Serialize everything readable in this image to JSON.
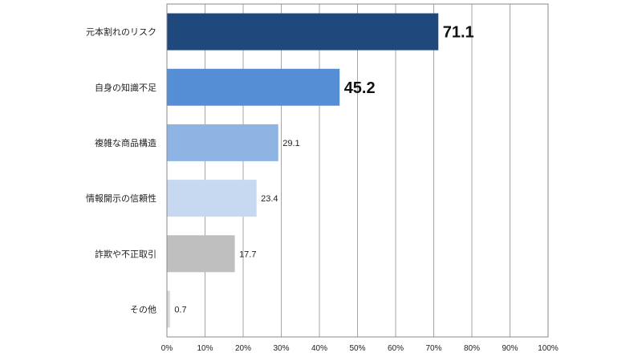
{
  "chart_data": {
    "type": "bar",
    "orientation": "horizontal",
    "categories": [
      "元本割れのリスク",
      "自身の知識不足",
      "複雑な商品構造",
      "情報開示の信頼性",
      "詐欺や不正取引",
      "その他"
    ],
    "values": [
      71.1,
      45.2,
      29.1,
      23.4,
      17.7,
      0.7
    ],
    "value_labels": [
      "71.1",
      "45.2",
      "29.1",
      "23.4",
      "17.7",
      "0.7"
    ],
    "highlighted_value_labels": [
      true,
      true,
      false,
      false,
      false,
      false
    ],
    "bar_colors": [
      "#1f497d",
      "#558ed5",
      "#8eb4e3",
      "#c6d9f1",
      "#bfbfbf",
      "#d9d9d9"
    ],
    "xlim": [
      0,
      100
    ],
    "xticks": [
      "0%",
      "10%",
      "20%",
      "30%",
      "40%",
      "50%",
      "60%",
      "70%",
      "80%",
      "90%",
      "100%"
    ],
    "grid": true,
    "gridline_color": "#a6a6a6",
    "legend": "none",
    "title": "",
    "xlabel": "",
    "ylabel": ""
  }
}
